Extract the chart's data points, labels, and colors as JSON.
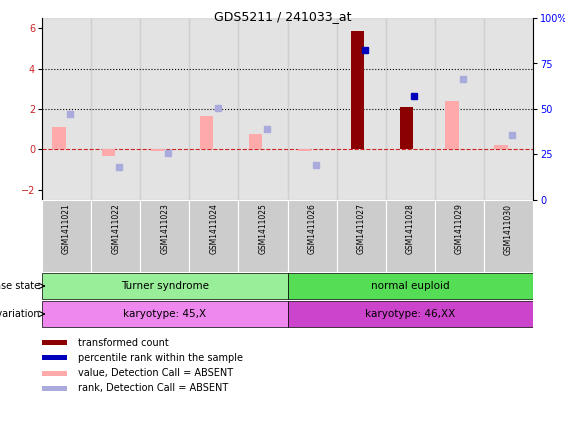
{
  "title": "GDS5211 / 241033_at",
  "samples": [
    "GSM1411021",
    "GSM1411022",
    "GSM1411023",
    "GSM1411024",
    "GSM1411025",
    "GSM1411026",
    "GSM1411027",
    "GSM1411028",
    "GSM1411029",
    "GSM1411030"
  ],
  "transformed_count": [
    null,
    null,
    null,
    null,
    null,
    null,
    5.85,
    2.1,
    null,
    null
  ],
  "percentile_rank": [
    null,
    null,
    null,
    null,
    null,
    null,
    4.9,
    2.65,
    null,
    null
  ],
  "value_absent": [
    1.1,
    -0.3,
    -0.1,
    1.65,
    0.75,
    -0.1,
    null,
    null,
    2.4,
    0.2
  ],
  "rank_absent": [
    1.75,
    -0.85,
    -0.2,
    2.05,
    1.0,
    -0.75,
    null,
    null,
    3.5,
    0.7
  ],
  "ylim_left": [
    -2.5,
    6.5
  ],
  "ylim_right": [
    0,
    100
  ],
  "yticks_left": [
    -2,
    0,
    2,
    4,
    6
  ],
  "yticks_right": [
    0,
    25,
    50,
    75,
    100
  ],
  "disease_state_groups": [
    {
      "label": "Turner syndrome",
      "start": 0,
      "end": 5,
      "color": "#99ee99"
    },
    {
      "label": "normal euploid",
      "start": 5,
      "end": 10,
      "color": "#55dd55"
    }
  ],
  "genotype_groups": [
    {
      "label": "karyotype: 45,X",
      "start": 0,
      "end": 5,
      "color": "#ee88ee"
    },
    {
      "label": "karyotype: 46,XX",
      "start": 5,
      "end": 10,
      "color": "#cc44cc"
    }
  ],
  "bar_width": 0.25,
  "color_transformed": "#8b0000",
  "color_percentile": "#0000bb",
  "color_value_absent": "#ffaaaa",
  "color_rank_absent": "#aaaadd",
  "bg_sample_color": "#cccccc",
  "zero_line_color": "#cc2222",
  "legend_items": [
    {
      "label": "transformed count",
      "color": "#8b0000"
    },
    {
      "label": "percentile rank within the sample",
      "color": "#0000bb"
    },
    {
      "label": "value, Detection Call = ABSENT",
      "color": "#ffaaaa"
    },
    {
      "label": "rank, Detection Call = ABSENT",
      "color": "#aaaadd"
    }
  ]
}
